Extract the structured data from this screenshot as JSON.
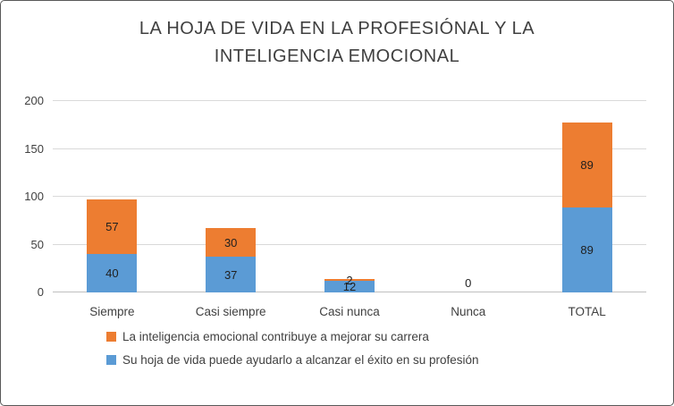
{
  "title": {
    "line1": "LA HOJA DE VIDA EN LA PROFESIÓNAL  Y LA",
    "line2": "INTELIGENCIA EMOCIONAL"
  },
  "chart_data": {
    "type": "bar",
    "stacked": true,
    "title": "LA HOJA DE VIDA EN LA PROFESIÓNAL Y LA INTELIGENCIA EMOCIONAL",
    "categories": [
      "Siempre",
      "Casi siempre",
      "Casi nunca",
      "Nunca",
      "TOTAL"
    ],
    "series": [
      {
        "name": "Su hoja de vida puede ayudarlo a alcanzar el éxito en su profesión",
        "color": "#5B9BD5",
        "values": [
          40,
          37,
          12,
          0,
          89
        ]
      },
      {
        "name": "La inteligencia emocional contribuye a mejorar su carrera",
        "color": "#ED7D31",
        "values": [
          57,
          30,
          2,
          0,
          89
        ]
      }
    ],
    "ylim": [
      0,
      200
    ],
    "yticks": [
      0,
      50,
      100,
      150,
      200
    ],
    "grid": true,
    "legend_position": "bottom-left"
  },
  "legend": {
    "items": [
      {
        "label": "La inteligencia emocional contribuye a mejorar su carrera",
        "color": "#ED7D31"
      },
      {
        "label": "Su hoja de vida puede ayudarlo a alcanzar el éxito en su profesión",
        "color": "#5B9BD5"
      }
    ]
  }
}
